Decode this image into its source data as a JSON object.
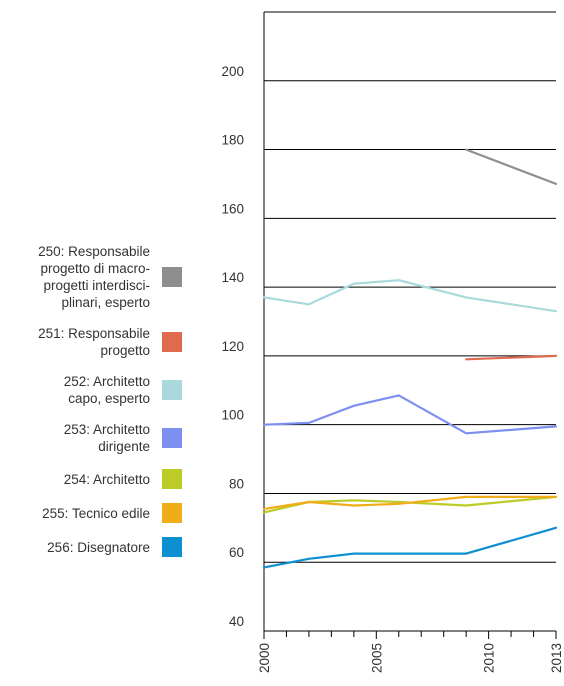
{
  "chart_data": {
    "type": "line",
    "title": "",
    "xlabel": "",
    "ylabel": "",
    "xlim": [
      2000,
      2013
    ],
    "ylim": [
      40,
      220
    ],
    "yticks": [
      40,
      60,
      80,
      100,
      120,
      140,
      160,
      180,
      200
    ],
    "xticks": [
      2000,
      2005,
      2010,
      2013
    ],
    "grid": "horizontal",
    "legend_position": "left",
    "series": [
      {
        "name": "250: Responsabile progetto di macro-progetti interdisci-plinari, esperto",
        "color": "#8e8e8e",
        "points": [
          [
            2009,
            180
          ],
          [
            2013,
            170
          ]
        ]
      },
      {
        "name": "251: Responsabile progetto",
        "color": "#e06a4e",
        "points": [
          [
            2009,
            119
          ],
          [
            2013,
            120
          ]
        ]
      },
      {
        "name": "252: Architetto capo, esperto",
        "color": "#a9d9dc",
        "points": [
          [
            2000,
            137
          ],
          [
            2002,
            135
          ],
          [
            2004,
            141
          ],
          [
            2006,
            142
          ],
          [
            2009,
            137
          ],
          [
            2013,
            133
          ]
        ]
      },
      {
        "name": "253: Architetto dirigente",
        "color": "#7d8ff0",
        "points": [
          [
            2000,
            100
          ],
          [
            2002,
            100.5
          ],
          [
            2004,
            105.5
          ],
          [
            2006,
            108.5
          ],
          [
            2009,
            97.5
          ],
          [
            2013,
            99.5
          ]
        ]
      },
      {
        "name": "254: Architetto",
        "color": "#bccb25",
        "points": [
          [
            2000,
            74.5
          ],
          [
            2002,
            77.5
          ],
          [
            2004,
            78
          ],
          [
            2006,
            77.5
          ],
          [
            2009,
            76.5
          ],
          [
            2013,
            79
          ]
        ]
      },
      {
        "name": "255: Tecnico edile",
        "color": "#f0ad19",
        "points": [
          [
            2000,
            75.5
          ],
          [
            2002,
            77.5
          ],
          [
            2004,
            76.5
          ],
          [
            2006,
            77
          ],
          [
            2009,
            79
          ],
          [
            2013,
            79
          ]
        ]
      },
      {
        "name": "256: Disegnatore",
        "color": "#0e8fd2",
        "points": [
          [
            2000,
            58.5
          ],
          [
            2002,
            61
          ],
          [
            2004,
            62.5
          ],
          [
            2006,
            62.5
          ],
          [
            2009,
            62.5
          ],
          [
            2013,
            70
          ]
        ]
      }
    ]
  },
  "legend": {
    "items": [
      {
        "label": "250: Responsabile\nprogetto di macro-\nprogetti interdisci-\nplinari, esperto",
        "color": "#8e8e8e"
      },
      {
        "label": "251: Responsabile\nprogetto",
        "color": "#e06a4e"
      },
      {
        "label": "252: Architetto\ncapo, esperto",
        "color": "#a9d9dc"
      },
      {
        "label": "253: Architetto\ndirigente",
        "color": "#7d8ff0"
      },
      {
        "label": "254: Architetto",
        "color": "#bccb25"
      },
      {
        "label": "255: Tecnico edile",
        "color": "#f0ad19"
      },
      {
        "label": "256: Disegnatore",
        "color": "#0e8fd2"
      }
    ]
  }
}
